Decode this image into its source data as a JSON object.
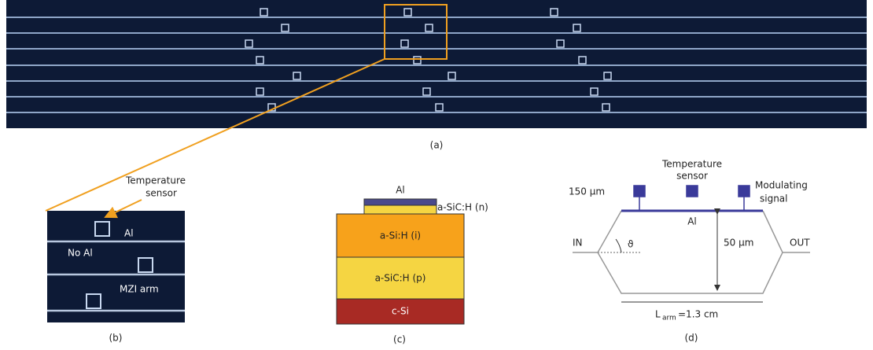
{
  "panel_a": {
    "label": "(a)"
  },
  "panel_b": {
    "label": "(b)",
    "sensor_label": [
      "Temperature",
      "sensor"
    ],
    "al_label": "Al",
    "no_al_label": "No Al",
    "arm_label": "MZI arm"
  },
  "panel_c": {
    "label": "(c)",
    "layers": [
      "Al",
      "a-SiC:H (n)",
      "a-Si:H (i)",
      "a-SiC:H (p)",
      "c-Si"
    ]
  },
  "panel_d": {
    "label": "(d)",
    "pad_size": "150 µm",
    "sensor_label": [
      "Temperature",
      "sensor"
    ],
    "signal_label": [
      "Modulating",
      "signal"
    ],
    "al_label": "Al",
    "input": "IN",
    "angle": "ϑ",
    "height": "50 µm",
    "output": "OUT",
    "length": {
      "symbol": "L",
      "subscript": "arm",
      "value": "=1.3 cm"
    }
  }
}
